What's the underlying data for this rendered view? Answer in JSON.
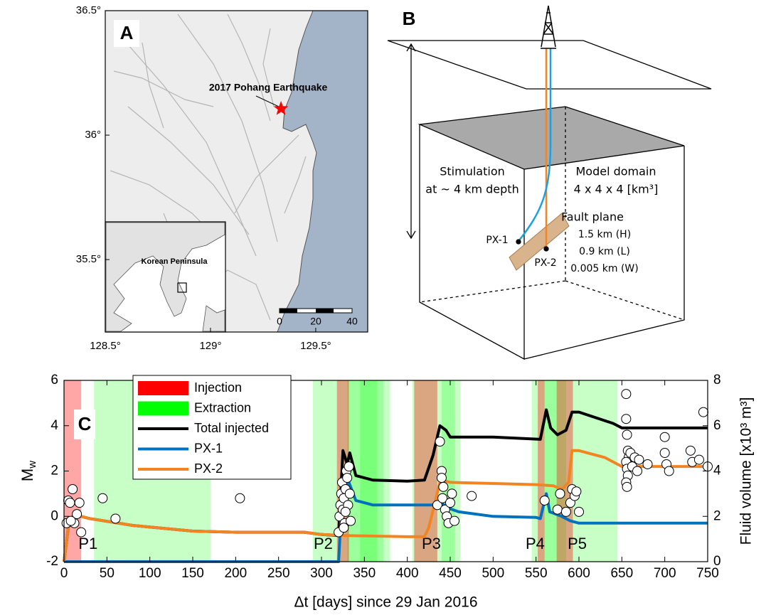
{
  "chart_data": [
    {
      "type": "map",
      "panel_label": "A",
      "xlim": [
        128.5,
        129.747
      ],
      "ylim": [
        35.209,
        36.5
      ],
      "xticks": [
        {
          "value": 128.5,
          "label": "128.5°"
        },
        {
          "value": 129,
          "label": "129°"
        },
        {
          "value": 129.5,
          "label": "129.5°"
        }
      ],
      "yticks": [
        {
          "value": 35.5,
          "label": "35.5°"
        },
        {
          "value": 36,
          "label": "36°"
        },
        {
          "value": 36.5,
          "label": "36.5°"
        }
      ],
      "points": [
        {
          "label": "2017 Pohang Earthquake",
          "x": 129.335,
          "y": 36.106,
          "color": "#ff0000"
        }
      ],
      "inset_label": "Korean Peninsula",
      "scale_bar": [
        0,
        20,
        40
      ]
    },
    {
      "type": "line",
      "panel_label": "C",
      "xlabel": "Δt [days] since 29 Jan 2016",
      "ylabel": "M",
      "ylabel_sub": "w",
      "y2label": "Fluid volume [x10³ m³]",
      "xlim": [
        0,
        750
      ],
      "xticks": [
        0,
        50,
        100,
        150,
        200,
        250,
        300,
        350,
        400,
        450,
        500,
        550,
        600,
        650,
        700,
        750
      ],
      "ylim": [
        -2,
        6
      ],
      "yticks": [
        -2,
        0,
        2,
        4,
        6
      ],
      "y2lim": [
        0,
        8
      ],
      "y2ticks": [
        0,
        2,
        4,
        6,
        8
      ],
      "phases": [
        "P1",
        "P2",
        "P3",
        "P4",
        "P5"
      ],
      "bands": [
        {
          "name": "Injection",
          "color": "#ff0000",
          "intervals": [
            [
              0,
              20
            ],
            [
              318,
              332
            ],
            [
              408,
              435
            ],
            [
              552,
              560
            ],
            [
              574,
              593
            ]
          ]
        },
        {
          "name": "Extraction",
          "color": "#00ff00",
          "intervals": [
            [
              35,
              171
            ],
            [
              290,
              380
            ],
            [
              330,
              372
            ],
            [
              345,
              365
            ],
            [
              406,
              462
            ],
            [
              440,
              455
            ],
            [
              545,
              645
            ],
            [
              560,
              585
            ]
          ]
        }
      ],
      "series": [
        {
          "name": "Total injected",
          "color": "#000000",
          "axis": "y2",
          "x": [
            0,
            5,
            10,
            20,
            30,
            80,
            150,
            200,
            280,
            300,
            320,
            325,
            330,
            333,
            340,
            360,
            400,
            420,
            430,
            438,
            445,
            450,
            500,
            555,
            562,
            567,
            575,
            585,
            592,
            600,
            640,
            650,
            750
          ],
          "values": [
            0,
            1.5,
            2.0,
            2.0,
            1.9,
            1.6,
            1.35,
            1.3,
            1.3,
            1.2,
            1.15,
            4.9,
            4.3,
            4.8,
            3.8,
            3.6,
            3.55,
            3.6,
            4.7,
            6.0,
            5.8,
            5.5,
            5.5,
            5.4,
            6.7,
            5.9,
            5.6,
            5.8,
            6.6,
            6.6,
            6.1,
            5.9,
            5.9
          ]
        },
        {
          "name": "PX-1",
          "color": "#0072bd",
          "axis": "y2",
          "x": [
            0,
            320,
            325,
            330,
            332,
            340,
            350,
            360,
            400,
            430,
            438,
            445,
            460,
            500,
            550,
            555,
            562,
            566,
            580,
            590,
            600,
            750
          ],
          "values": [
            0,
            0,
            3.7,
            3.2,
            3.5,
            2.7,
            2.6,
            2.5,
            2.5,
            2.5,
            2.7,
            2.4,
            2.2,
            2.0,
            1.95,
            1.9,
            3.0,
            2.2,
            2.0,
            1.8,
            1.7,
            1.7
          ]
        },
        {
          "name": "PX-2",
          "color": "#f28522",
          "axis": "y2",
          "x": [
            0,
            5,
            10,
            20,
            30,
            80,
            150,
            200,
            280,
            300,
            330,
            400,
            420,
            425,
            438,
            440,
            450,
            500,
            550,
            570,
            580,
            588,
            592,
            600,
            630,
            650,
            750
          ],
          "values": [
            0,
            1.5,
            2.0,
            2.0,
            1.9,
            1.6,
            1.35,
            1.3,
            1.3,
            1.2,
            1.15,
            1.1,
            1.1,
            1.5,
            3.5,
            3.6,
            3.5,
            3.45,
            3.4,
            3.35,
            3.2,
            3.5,
            4.9,
            4.9,
            4.6,
            4.2,
            4.2
          ]
        }
      ],
      "events": {
        "x": [
          3,
          5,
          7,
          10,
          12,
          15,
          18,
          20,
          8,
          45,
          60,
          205,
          320,
          321,
          322,
          323,
          324,
          325,
          326,
          327,
          328,
          329,
          330,
          331,
          332,
          333,
          334,
          326,
          328,
          435,
          438,
          440,
          441,
          442,
          444,
          446,
          448,
          450,
          452,
          455,
          440,
          475,
          560,
          575,
          578,
          585,
          590,
          592,
          595,
          597,
          600,
          655,
          655,
          656,
          657,
          658,
          655,
          656,
          657,
          655,
          656,
          660,
          662,
          665,
          668,
          670,
          700,
          700,
          702,
          705,
          730,
          732,
          745,
          740,
          750,
          680
        ],
        "values": [
          -0.3,
          0.7,
          0.6,
          1.2,
          -0.3,
          0.1,
          0.6,
          -0.7,
          -0.2,
          0.8,
          -0.1,
          0.8,
          -0.7,
          0.0,
          0.5,
          1.0,
          1.5,
          0.3,
          0.8,
          -0.3,
          1.2,
          2.0,
          1.7,
          0.5,
          2.2,
          1.0,
          -0.2,
          -0.5,
          0.2,
          0.5,
          3.3,
          2.0,
          0.8,
          1.3,
          0.3,
          0.0,
          -0.3,
          0.6,
          1.0,
          -0.2,
          1.7,
          0.9,
          0.7,
          0.3,
          1.0,
          0.2,
          0.6,
          1.2,
          0.9,
          1.1,
          0.2,
          5.4,
          4.3,
          3.6,
          2.9,
          2.6,
          2.4,
          2.1,
          1.8,
          1.5,
          1.3,
          2.8,
          2.2,
          2.6,
          2.0,
          2.5,
          3.5,
          2.8,
          2.3,
          2.0,
          2.9,
          2.4,
          4.6,
          2.5,
          2.2,
          2.3
        ]
      }
    }
  ],
  "diagram": {
    "panel_label": "B",
    "stimulation": [
      "Stimulation",
      "at ~ 4 km depth"
    ],
    "domain": [
      "Model domain",
      "4 x 4 x 4 [km³]"
    ],
    "fault": [
      "Fault plane",
      "1.5 km (H)",
      "0.9 km (L)",
      "0.005 km (W)"
    ],
    "wells": [
      "PX-1",
      "PX-2"
    ]
  }
}
